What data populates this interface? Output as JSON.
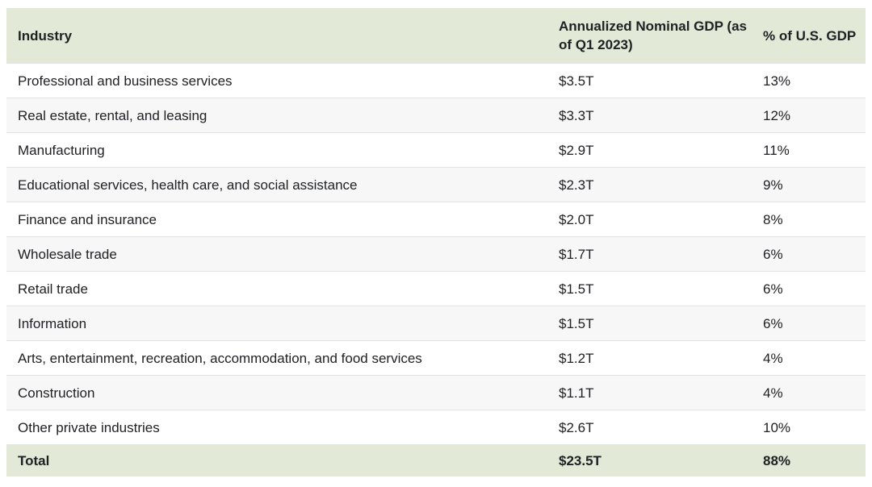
{
  "colors": {
    "header_bg": "#e2e9d7",
    "total_bg": "#e2e9d7",
    "row_alt_bg": "#f7f7f7",
    "row_bg": "#ffffff",
    "divider": "#e3e3e3",
    "text": "#202124"
  },
  "table": {
    "header": {
      "industry": "Industry",
      "gdp": "Annualized Nominal GDP (as of Q1 2023)",
      "pct": "% of U.S. GDP"
    },
    "rows": [
      {
        "industry": "Professional and business services",
        "gdp": "$3.5T",
        "pct": "13%"
      },
      {
        "industry": "Real estate, rental, and leasing",
        "gdp": "$3.3T",
        "pct": "12%"
      },
      {
        "industry": "Manufacturing",
        "gdp": "$2.9T",
        "pct": "11%"
      },
      {
        "industry": "Educational services, health care, and social assistance",
        "gdp": "$2.3T",
        "pct": "9%"
      },
      {
        "industry": "Finance and insurance",
        "gdp": "$2.0T",
        "pct": "8%"
      },
      {
        "industry": "Wholesale trade",
        "gdp": "$1.7T",
        "pct": "6%"
      },
      {
        "industry": "Retail trade",
        "gdp": "$1.5T",
        "pct": "6%"
      },
      {
        "industry": "Information",
        "gdp": "$1.5T",
        "pct": "6%"
      },
      {
        "industry": "Arts, entertainment, recreation, accommodation, and food services",
        "gdp": "$1.2T",
        "pct": "4%"
      },
      {
        "industry": "Construction",
        "gdp": "$1.1T",
        "pct": "4%"
      },
      {
        "industry": "Other private industries",
        "gdp": "$2.6T",
        "pct": "10%"
      }
    ],
    "total": {
      "industry": "Total",
      "gdp": "$23.5T",
      "pct": "88%"
    }
  },
  "chart_data": {
    "type": "table",
    "columns": [
      "Industry",
      "Annualized Nominal GDP (as of Q1 2023)",
      "% of U.S. GDP"
    ],
    "rows": [
      [
        "Professional and business services",
        "$3.5T",
        "13%"
      ],
      [
        "Real estate, rental, and leasing",
        "$3.3T",
        "12%"
      ],
      [
        "Manufacturing",
        "$2.9T",
        "11%"
      ],
      [
        "Educational services, health care, and social assistance",
        "$2.3T",
        "9%"
      ],
      [
        "Finance and insurance",
        "$2.0T",
        "8%"
      ],
      [
        "Wholesale trade",
        "$1.7T",
        "6%"
      ],
      [
        "Retail trade",
        "$1.5T",
        "6%"
      ],
      [
        "Information",
        "$1.5T",
        "6%"
      ],
      [
        "Arts, entertainment, recreation, accommodation, and food services",
        "$1.2T",
        "4%"
      ],
      [
        "Construction",
        "$1.1T",
        "4%"
      ],
      [
        "Other private industries",
        "$2.6T",
        "10%"
      ]
    ],
    "total_row": [
      "Total",
      "$23.5T",
      "88%"
    ],
    "gdp_values_trillions": [
      3.5,
      3.3,
      2.9,
      2.3,
      2.0,
      1.7,
      1.5,
      1.5,
      1.2,
      1.1,
      2.6
    ],
    "pct_values": [
      13,
      12,
      11,
      9,
      8,
      6,
      6,
      6,
      4,
      4,
      10
    ],
    "total_gdp_trillions": 23.5,
    "total_pct": 88
  }
}
